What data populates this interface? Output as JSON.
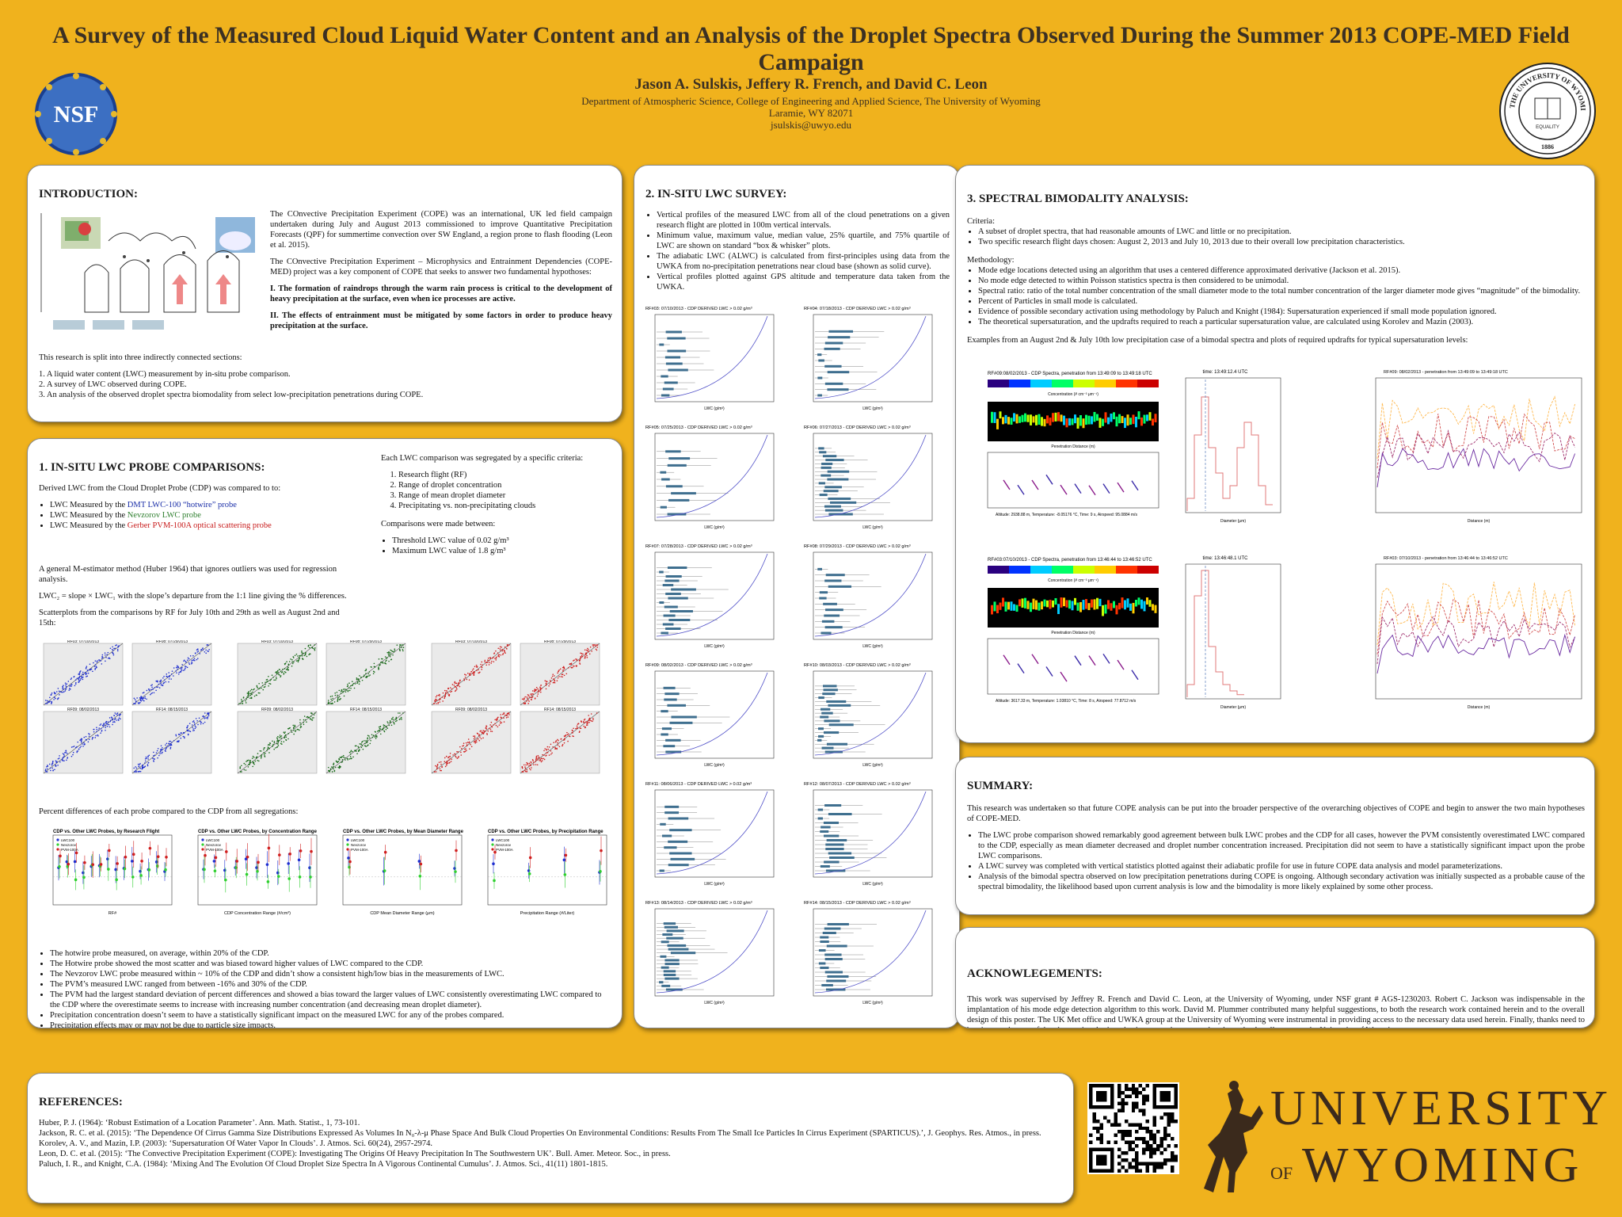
{
  "header": {
    "title": "A Survey of the Measured Cloud Liquid Water Content and an Analysis of the Droplet Spectra Observed During the Summer 2013 COPE-MED Field Campaign",
    "authors": "Jason A. Sulskis, Jeffery R. French, and David C. Leon",
    "affiliation": "Department of Atmospheric Science, College of Engineering and Applied Science, The University of Wyoming",
    "address": "Laramie, WY 82071",
    "email": "jsulskis@uwyo.edu",
    "nsf_logo": "NSF",
    "seal_text": "THE UNIVERSITY OF WYOMING",
    "seal_year": "1886",
    "seal_motto": "EQUALITY"
  },
  "intro": {
    "heading": "INTRODUCTION:",
    "p1": "The COnvective Precipitation Experiment (COPE) was an international, UK led field campaign undertaken during July and August 2013 commissioned to improve Quantitative Precipitation Forecasts (QPF) for summertime convection over SW England, a region prone to flash flooding (Leon et al. 2015).",
    "p2": "The COnvective Precipitation Experiment – Microphysics and Entrainment Dependencies (COPE-MED) project was a key component of COPE that seeks to answer two fundamental hypothoses:",
    "h1": "I.        The formation of raindrops through the warm rain process is critical to the development of heavy precipitation at the surface, even when ice processes are active.",
    "h2": "II.       The effects of entrainment must be mitigated by some factors in order to produce heavy precipitation at the surface.",
    "split": "This research is split into three indirectly connected sections:",
    "items": [
      "1. A liquid water content (LWC) measurement by in-situ probe comparison.",
      "2. A survey of LWC observed during COPE.",
      "3. An analysis of the observed droplet spectra biomodality from select low-precipitation penetrations during COPE."
    ]
  },
  "section1": {
    "heading": "1. IN-SITU LWC PROBE COMPARISONS:",
    "derived": "Derived LWC from the Cloud Droplet Probe (CDP) was compared to to:",
    "bullets": [
      {
        "pre": "LWC Measured by the ",
        "name": "DMT LWC-100 “hotwire” probe"
      },
      {
        "pre": "LWC Measured by the ",
        "name": "Nevzorov LWC probe"
      },
      {
        "pre": "LWC Measured by the ",
        "name": "Gerber PVM-100A optical scattering probe"
      }
    ],
    "seg_intro": "Each LWC comparison was segregated by a specific criteria:",
    "criteria": [
      "Research flight (RF)",
      "Range of droplet concentration",
      "Range of mean droplet diameter",
      "Precipitating vs. non-precipitating clouds"
    ],
    "comp_intro": "Comparisons were made between:",
    "comps": [
      "Threshold LWC value of 0.02 g/m³",
      "Maximum LWC value of 1.8 g/m³"
    ],
    "mest": "A general M-estimator method (Huber 1964) that ignores outliers was used for regression analysis.",
    "formula": "LWC₂ = slope × LWC₁  with the slope’s departure from the 1:1 line giving the % differences.",
    "scatter_intro": "Scatterplots from the comparisons by RF for July 10th and 29th as well as August 2nd and 15th:",
    "scatter_titles": [
      "RF03: 07/10/2013",
      "RF08: 07/29/2013",
      "RF09: 08/02/2013",
      "RF14: 08/15/2013"
    ],
    "pct_intro": "Percent differences of each probe compared to the CDP from all segregations:",
    "pct_titles": [
      "CDP vs. Other LWC Probes, by Research Flight",
      "CDP vs. Other LWC Probes, by Concentration Range",
      "CDP vs. Other LWC Probes, by Mean Diameter Range",
      "CDP vs. Other LWC Probes, by Precipitation Range"
    ],
    "pct_xlabels": [
      "RF#",
      "CDP Concentration Range (#/cm³)",
      "CDP Mean Diameter Range (μm)",
      "Precipitation Range (#/Liter)"
    ],
    "legend": [
      "LWC100",
      "Nevzorov",
      "PVM-100A"
    ],
    "findings": [
      "The hotwire probe measured, on average, within 20% of the CDP.",
      "The Hotwire probe showed the most scatter and was biased toward higher values of LWC compared to the CDP.",
      "The Nevzorov LWC probe measured within ~ 10% of the CDP and didn’t show a consistent high/low bias in the measurements of LWC.",
      "The PVM’s measured LWC ranged from between -16% and 30% of the CDP.",
      "The PVM had the largest standard deviation of percent differences and showed a bias toward the larger values of LWC consistently overestimating LWC compared to the CDP where the overestimate seems to increase with increasing number concentration (and decreasing mean droplet diameter).",
      "Precipitation concentration doesn’t seem to have a statistically significant impact on the measured LWC for any of the probes compared.",
      "Precipitation effects may or may not be due to particle size impacts."
    ]
  },
  "section2": {
    "heading": "2. IN-SITU LWC SURVEY:",
    "bullets": [
      "Vertical profiles of the measured LWC from all of the cloud penetrations on a given research flight are plotted in 100m vertical intervals.",
      "Minimum value, maximum value, median value, 25% quartile, and 75% quartile of LWC are shown on standard “box & whisker” plots.",
      "The adiabatic LWC (ALWC) is calculated from first-principles using data from the UWKA from no-precipitation penetrations near cloud base (shown as solid curve).",
      "Vertical profiles plotted against GPS altitude and temperature data taken from the UWKA."
    ],
    "profiles": [
      "RF#03: 07/10/2013 - CDP DERIVED LWC > 0.02 g/m³",
      "RF#04: 07/18/2013 - CDP DERIVED LWC > 0.02 g/m³",
      "RF#05: 07/25/2013 - CDP DERIVED LWC > 0.02 g/m³",
      "RF#06: 07/27/2013 - CDP DERIVED LWC > 0.02 g/m³",
      "RF#07: 07/28/2013 - CDP DERIVED LWC > 0.02 g/m³",
      "RF#08: 07/29/2013 - CDP DERIVED LWC > 0.02 g/m³",
      "RF#09: 08/02/2013 - CDP DERIVED LWC > 0.02 g/m³",
      "RF#10: 08/03/2013 - CDP DERIVED LWC > 0.02 g/m³",
      "RF#11: 08/06/2013 - CDP DERIVED LWC > 0.02 g/m³",
      "RF#12: 08/07/2013 - CDP DERIVED LWC > 0.02 g/m³",
      "RF#13: 08/14/2013 - CDP DERIVED LWC > 0.02 g/m³",
      "RF#14: 08/15/2013 - CDP DERIVED LWC > 0.02 g/m³"
    ],
    "xlabel": "LWC (g/m³)"
  },
  "section3": {
    "heading": "3. SPECTRAL BIMODALITY ANALYSIS:",
    "criteria_label": "Criteria:",
    "criteria": [
      "A subset of droplet spectra, that had reasonable amounts of LWC and little or no precipitation.",
      "Two specific research flight days chosen: August 2, 2013 and July 10, 2013 due to their overall low precipitation characteristics."
    ],
    "method_label": "Methodology:",
    "methods": [
      "Mode edge locations detected using an algorithm that uses a centered difference approximated derivative (Jackson et al. 2015).",
      "No mode edge detected to within Poisson statistics spectra is then considered to be unimodal.",
      "Spectral ratio: ratio of the total number concentration of the small diameter mode to the total number concentration of the larger diameter mode gives “magnitude” of the bimodality.",
      "Percent of Particles in small mode is calculated.",
      "Evidence of possible secondary activation using methodology by Paluch and Knight (1984): Supersaturation experienced if small mode population ignored.",
      "The theoretical supersaturation, and the updrafts required to reach a particular supersaturation value, are calculated using Korolev and Mazin (2003)."
    ],
    "examples": "Examples from an August 2nd & July 10th low precipitation case of a bimodal spectra and plots of required updrafts for typical supersaturation levels:",
    "spec1_title": "RF#09:08/02/2013 - CDP Spectra, penetration from 13:49:09 to 13:49:18 UTC",
    "spec2_title": "RF#03:07/10/2013 - CDP Spectra, penetration from 13:46:44 to 13:46:52 UTC",
    "time1": "time: 13:49:12.4 UTC",
    "time2": "time: 13:46:48.1 UTC",
    "updraft1_title": "RF#09: 08/02/2013 - penetration from 13:49:09 to 13:49:18 UTC",
    "updraft2_title": "RF#03: 07/10/2013 - penetration from 13:46:44 to 13:46:52 UTC",
    "alt1": "Altitude: 2938.88 m, Temperature: -8.05176 °C, Time: 9 s, Airspeed: 95.0884 m/s",
    "alt2": "Altitude: 3617.33 m, Temperature: 1.03810 °C, Time: 8 s, Airspeed: 77.8712 m/s",
    "conc_label": "Concentration (# cm⁻³ μm⁻¹)",
    "pen_label": "Penetration Distance (m)",
    "diam_label": "Diameter (μm)",
    "dist_label": "Distance (m)"
  },
  "summary": {
    "heading": "SUMMARY:",
    "intro": "This research was undertaken so that future COPE analysis can be put into the broader perspective of the overarching objectives of COPE and begin to answer the two main hypotheses of COPE-MED.",
    "bullets": [
      "The LWC probe comparison showed remarkably good agreement between bulk LWC probes and the CDP for all cases, however the PVM consistently overestimated LWC compared to the CDP, especially as mean diameter decreased and droplet number concentration increased. Precipitation did not seem to have a statistically significant impact upon the probe LWC comparisons.",
      "A LWC survey was completed with vertical statistics plotted against their adiabatic profile for use in future COPE data analysis and model parameterizations.",
      "Analysis of the bimodal spectra observed on low precipitation penetrations during COPE is ongoing. Although secondary activation was initially suspected as a probable cause of the spectral bimodality, the likelihood based upon current analysis is low and the bimodality is more likely explained by some other process."
    ]
  },
  "ack": {
    "heading": "ACKNOWLEGEMENTS:",
    "text": "This work was supervised by Jeffrey R. French and David C. Leon, at the University of Wyoming, under NSF grant # AGS-1230203. Robert C. Jackson was indispensable in the implantation of his mode edge detection algorithm to this work. David M. Plummer contributed many helpful suggestions, to both the research work contained herein and to the overall design of this poster. The UK Met office and UWKA group at the University of Wyoming were instrumental in providing access to the necessary data used herein. Finally, thanks need to be given to the rest of the observational microphysics research group and to the author’s colleagues at the University of Wyoming."
  },
  "refs": {
    "heading": "REFERENCES:",
    "items": [
      "Huber, P. J. (1964): ‘Robust Estimation of a Location Parameter’. Ann. Math. Statist., 1, 73-101.",
      "Jackson, R. C. et al. (2015): ‘The Dependence Of Cirrus Gamma Size Distributions Expressed As Volumes In N₀-λ-μ Phase Space And Bulk Cloud Properties On Environmental Conditions: Results From The Small Ice Particles In Cirrus Experiment (SPARTICUS).’, J. Geophys. Res. Atmos., in press.",
      "Korolev, A. V., and Mazin, I.P. (2003): ‘Supersaturation Of Water Vapor In Clouds’. J. Atmos. Sci. 60(24), 2957-2974.",
      "Leon, D. C. et al. (2015): ‘The Convective Precipitation Experiment (COPE): Investigating The Origins Of Heavy Precipitation In The Southwestern UK’. Bull. Amer. Meteor. Soc., in press.",
      " Paluch, I. R., and Knight, C.A. (1984): ‘Mixing And The Evolution Of Cloud Droplet Size Spectra In A Vigorous Continental Cumulus’. J. Atmos. Sci., 41(11) 1801-1815."
    ]
  },
  "brand": {
    "line1": "UNIVERSITY",
    "of": "OF",
    "line2": "WYOMING"
  }
}
